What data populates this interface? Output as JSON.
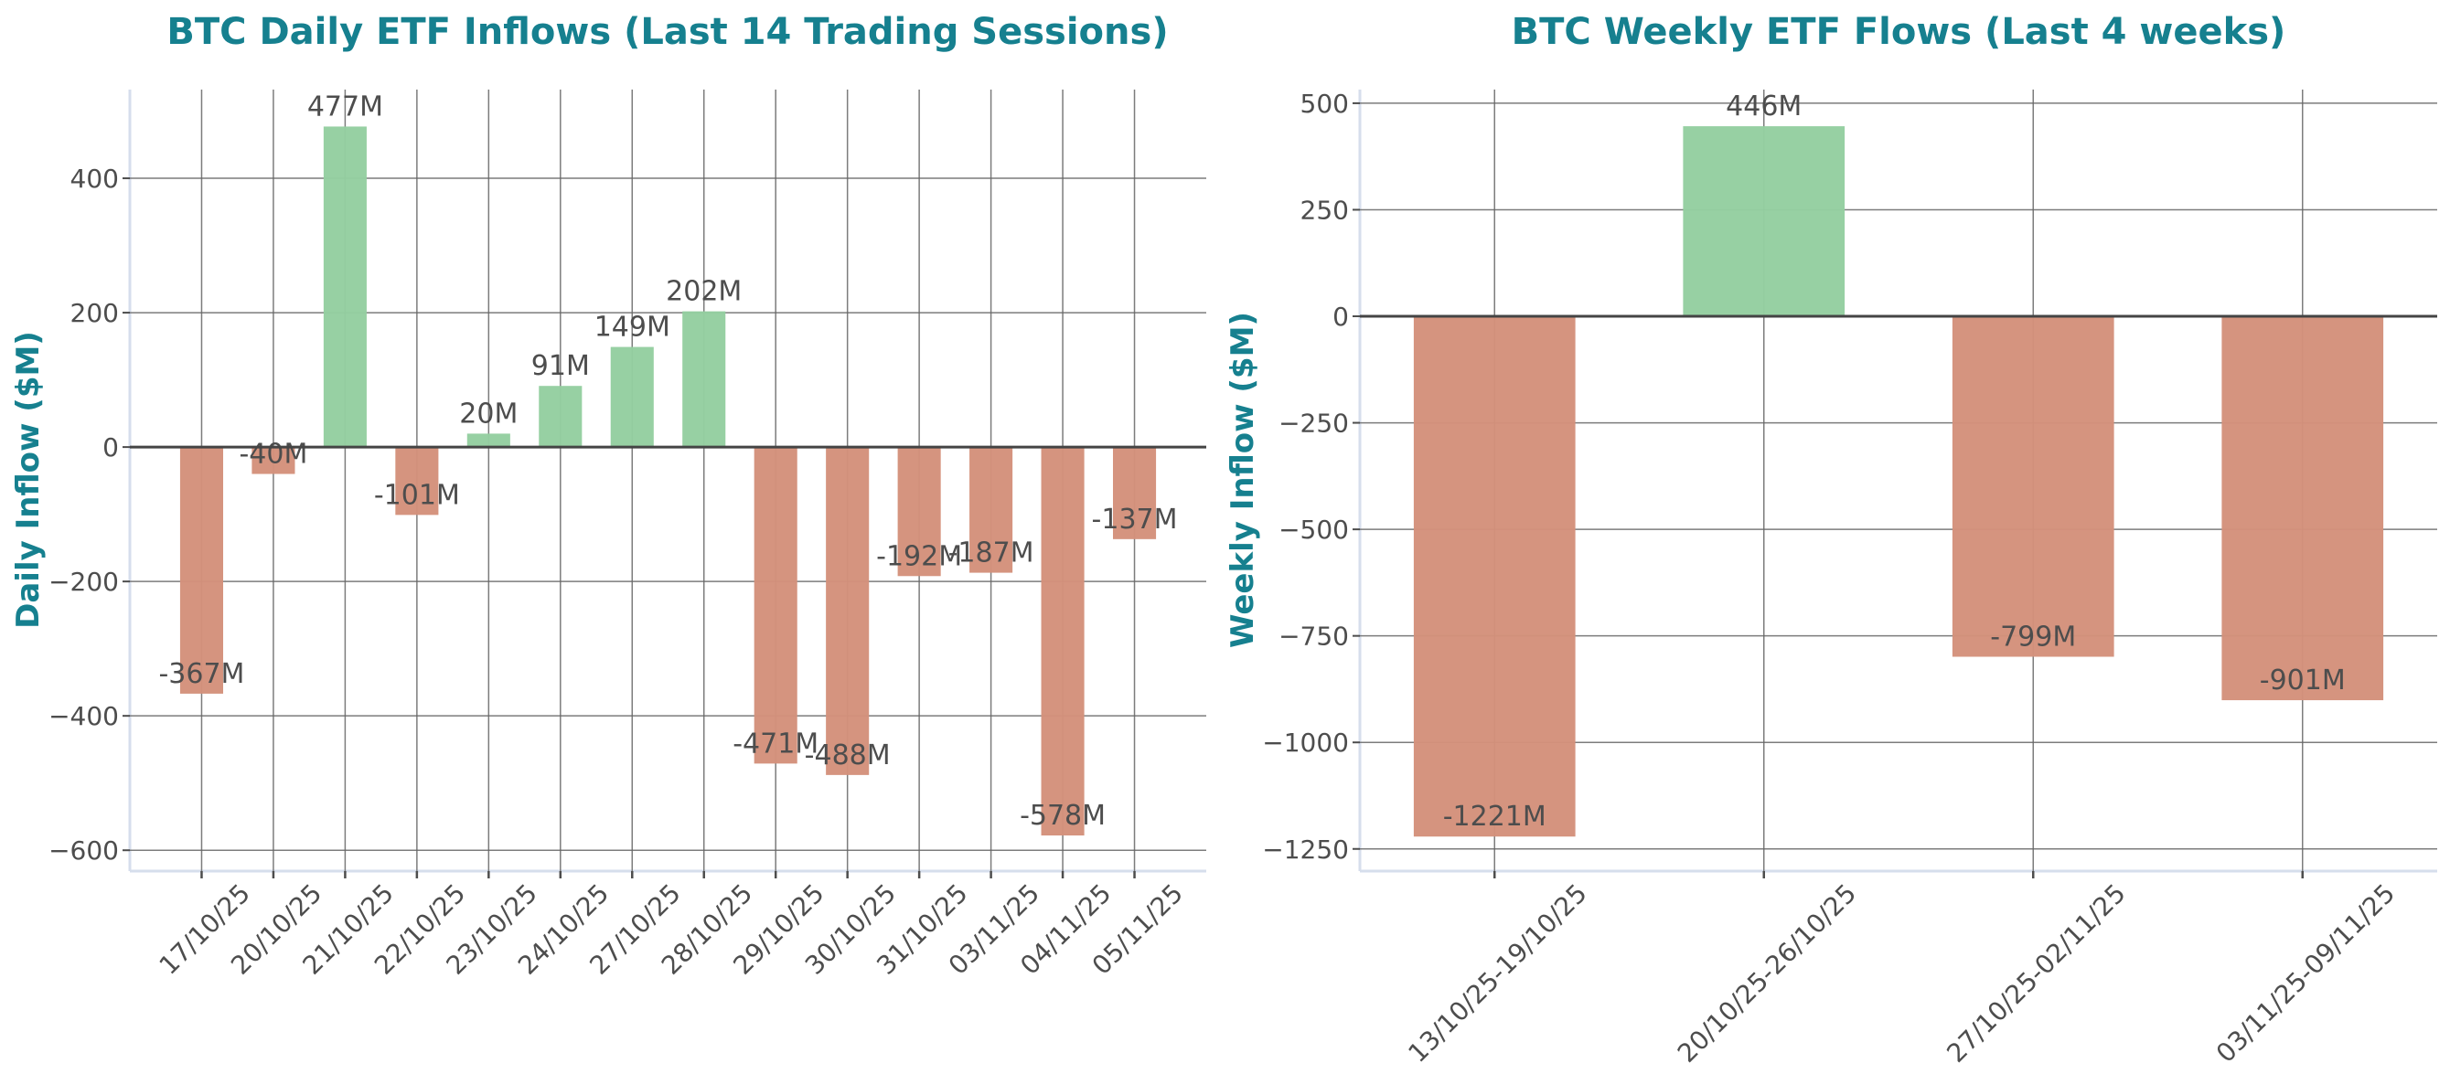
{
  "colors": {
    "positive": "#94cea0",
    "negative": "#d4917b",
    "title": "#16808f",
    "text": "#4d4d4d",
    "grid": "#666666"
  },
  "chart_data": [
    {
      "type": "bar",
      "title": "BTC Daily ETF Inflows (Last 14 Trading Sessions)",
      "xlabel": "",
      "ylabel": "Daily Inflow ($M)",
      "categories": [
        "17/10/25",
        "20/10/25",
        "21/10/25",
        "22/10/25",
        "23/10/25",
        "24/10/25",
        "27/10/25",
        "28/10/25",
        "29/10/25",
        "30/10/25",
        "31/10/25",
        "03/11/25",
        "04/11/25",
        "05/11/25"
      ],
      "values": [
        -367,
        -40,
        477,
        -101,
        20,
        91,
        149,
        202,
        -471,
        -488,
        -192,
        -187,
        -578,
        -137
      ],
      "data_labels": [
        "-367M",
        "-40M",
        "477M",
        "-101M",
        "20M",
        "91M",
        "149M",
        "202M",
        "-471M",
        "-488M",
        "-192M",
        "-187M",
        "-578M",
        "-137M"
      ],
      "ylim": [
        -631,
        532
      ],
      "yticks": [
        -600,
        -400,
        -200,
        0,
        200,
        400
      ],
      "ytick_labels": [
        "−600",
        "−400",
        "−200",
        "0",
        "200",
        "400"
      ],
      "grid": true
    },
    {
      "type": "bar",
      "title": "BTC Weekly ETF Flows (Last 4 weeks)",
      "xlabel": "",
      "ylabel": "Weekly Inflow ($M)",
      "categories": [
        "13/10/25-19/10/25",
        "20/10/25-26/10/25",
        "27/10/25-02/11/25",
        "03/11/25-09/11/25"
      ],
      "values": [
        -1221,
        446,
        -799,
        -901
      ],
      "data_labels": [
        "-1221M",
        "446M",
        "-799M",
        "-901M"
      ],
      "ylim": [
        -1302,
        532
      ],
      "yticks": [
        -1250,
        -1000,
        -750,
        -500,
        -250,
        0,
        250,
        500
      ],
      "ytick_labels": [
        "−1250",
        "−1000",
        "−750",
        "−500",
        "−250",
        "0",
        "250",
        "500"
      ],
      "grid": true
    }
  ]
}
